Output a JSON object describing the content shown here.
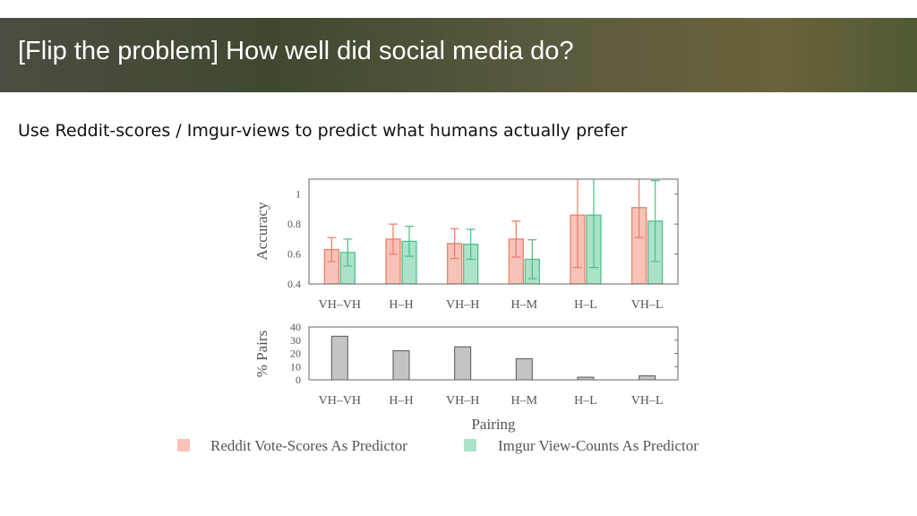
{
  "title": "[Flip the problem] How well did social media do?",
  "subtitle": "Use Reddit-scores / Imgur-views to predict what humans actually prefer",
  "chart_data": [
    {
      "type": "bar",
      "y_label": "Accuracy",
      "categories": [
        "VH–VH",
        "H–H",
        "VH–H",
        "H–M",
        "H–L",
        "VH–L"
      ],
      "series": [
        {
          "name": "Reddit Vote-Scores As Predictor",
          "color": "#ee7a62",
          "values": [
            0.63,
            0.7,
            0.67,
            0.7,
            0.86,
            0.91
          ],
          "errors": [
            0.08,
            0.1,
            0.1,
            0.12,
            0.35,
            0.2
          ]
        },
        {
          "name": "Imgur View-Counts As Predictor",
          "color": "#46bf84",
          "values": [
            0.61,
            0.685,
            0.665,
            0.565,
            0.86,
            0.82
          ],
          "errors": [
            0.09,
            0.1,
            0.1,
            0.13,
            0.35,
            0.27
          ]
        }
      ],
      "ylim": [
        0.4,
        1.1
      ],
      "yticks": [
        0.4,
        0.6,
        0.8,
        1
      ]
    },
    {
      "type": "bar",
      "y_label": "% Pairs",
      "x_label": "Pairing",
      "categories": [
        "VH–VH",
        "H–H",
        "VH–H",
        "H–M",
        "H–L",
        "VH–L"
      ],
      "values": [
        33,
        22,
        25,
        16,
        2,
        3
      ],
      "color": "#c4c4c4",
      "ylim": [
        0,
        40
      ],
      "yticks": [
        0,
        10,
        20,
        30,
        40
      ]
    }
  ]
}
